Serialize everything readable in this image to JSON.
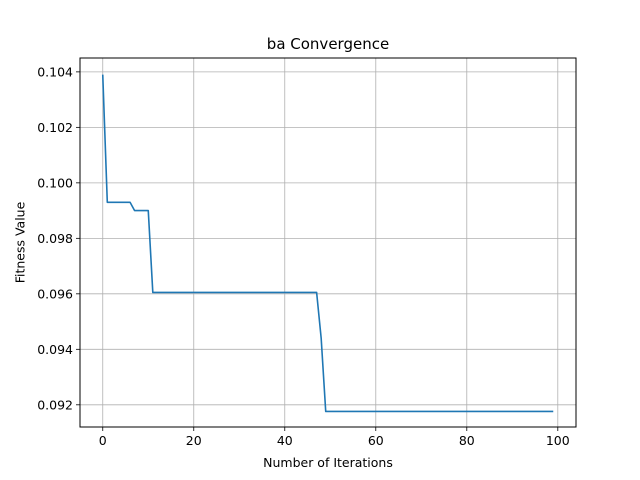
{
  "chart_data": {
    "type": "line",
    "title": "ba Convergence",
    "xlabel": "Number of Iterations",
    "ylabel": "Fitness Value",
    "xlim": [
      -5,
      104
    ],
    "ylim": [
      0.0912,
      0.1045
    ],
    "xticks": [
      0,
      20,
      40,
      60,
      80,
      100
    ],
    "yticks": [
      0.092,
      0.094,
      0.096,
      0.098,
      0.1,
      0.102,
      0.104
    ],
    "xtick_labels": [
      "0",
      "20",
      "40",
      "60",
      "80",
      "100"
    ],
    "ytick_labels": [
      "0.092",
      "0.094",
      "0.096",
      "0.098",
      "0.100",
      "0.102",
      "0.104"
    ],
    "grid": true,
    "colors": {
      "line": "#1f77b4",
      "grid": "#b0b0b0"
    },
    "series": [
      {
        "x": [
          0,
          1,
          6,
          7,
          10,
          11,
          47,
          48,
          49,
          99
        ],
        "y": [
          0.1039,
          0.0993,
          0.0993,
          0.099,
          0.099,
          0.09605,
          0.09605,
          0.0944,
          0.09176,
          0.09176
        ]
      }
    ]
  }
}
